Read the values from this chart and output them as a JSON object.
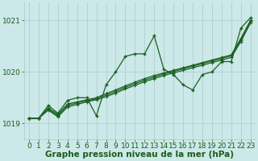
{
  "xlabel": "Graphe pression niveau de la mer (hPa)",
  "xlim": [
    -0.5,
    23.5
  ],
  "ylim": [
    1018.7,
    1021.35
  ],
  "yticks": [
    1019,
    1020,
    1021
  ],
  "xticks": [
    0,
    1,
    2,
    3,
    4,
    5,
    6,
    7,
    8,
    9,
    10,
    11,
    12,
    13,
    14,
    15,
    16,
    17,
    18,
    19,
    20,
    21,
    22,
    23
  ],
  "bg_color": "#cce8e8",
  "grid_color": "#a8cccc",
  "line_color": "#1a6020",
  "volatile_line": [
    1019.1,
    1019.1,
    1019.35,
    1019.2,
    1019.45,
    1019.5,
    1019.5,
    1019.15,
    1019.75,
    1020.0,
    1020.3,
    1020.35,
    1020.35,
    1020.7,
    1020.05,
    1019.95,
    1019.75,
    1019.65,
    1019.95,
    1020.0,
    1020.2,
    1020.2,
    1020.85,
    1021.05
  ],
  "steady_line1": [
    1019.1,
    1019.1,
    1019.3,
    1019.18,
    1019.38,
    1019.42,
    1019.46,
    1019.5,
    1019.58,
    1019.65,
    1019.73,
    1019.8,
    1019.87,
    1019.93,
    1019.98,
    1020.03,
    1020.08,
    1020.13,
    1020.18,
    1020.23,
    1020.28,
    1020.33,
    1020.65,
    1021.0
  ],
  "steady_line2": [
    1019.1,
    1019.1,
    1019.28,
    1019.15,
    1019.35,
    1019.4,
    1019.44,
    1019.48,
    1019.55,
    1019.62,
    1019.7,
    1019.77,
    1019.84,
    1019.9,
    1019.96,
    1020.01,
    1020.06,
    1020.11,
    1020.16,
    1020.21,
    1020.26,
    1020.31,
    1020.62,
    1020.98
  ],
  "steady_line3": [
    1019.1,
    1019.1,
    1019.26,
    1019.13,
    1019.32,
    1019.37,
    1019.42,
    1019.46,
    1019.52,
    1019.59,
    1019.67,
    1019.74,
    1019.81,
    1019.87,
    1019.93,
    1019.98,
    1020.03,
    1020.08,
    1020.13,
    1020.18,
    1020.23,
    1020.28,
    1020.59,
    1020.95
  ],
  "font_color": "#1a5c1a",
  "tick_fontsize": 6.5,
  "label_fontsize": 7.5
}
